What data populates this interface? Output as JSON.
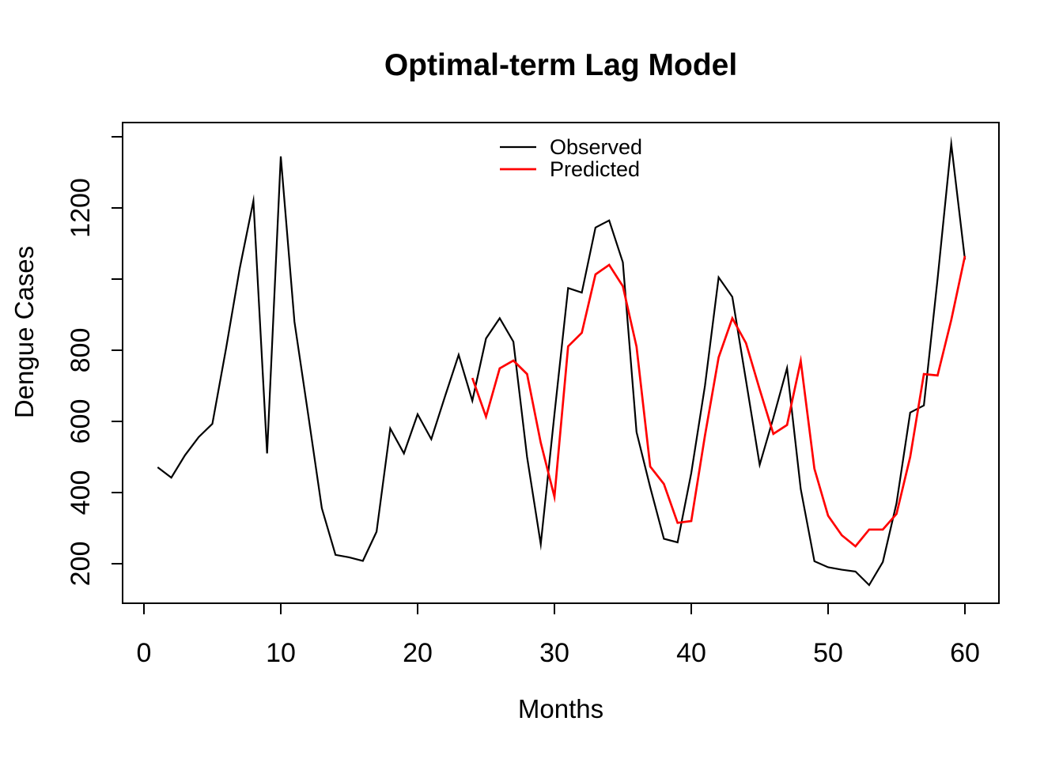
{
  "title": "Optimal-term Lag Model",
  "legend": {
    "items": [
      {
        "label": "Observed",
        "color": "#000000"
      },
      {
        "label": "Predicted",
        "color": "#ff0000"
      }
    ]
  },
  "chart_data": {
    "type": "line",
    "title": "Optimal-term Lag Model",
    "xlabel": "Months",
    "ylabel": "Dengue Cases",
    "xlim": [
      -1.6,
      62.5
    ],
    "ylim": [
      140,
      1440
    ],
    "grid": false,
    "legend_position": "top-center-inside",
    "x_ticks": [
      0,
      10,
      20,
      30,
      40,
      50,
      60
    ],
    "y_ticks": [
      {
        "value": 200,
        "label": "200"
      },
      {
        "value": 400,
        "label": "400"
      },
      {
        "value": 600,
        "label": "600"
      },
      {
        "value": 800,
        "label": "800"
      },
      {
        "value": 1000,
        "label": ""
      },
      {
        "value": 1200,
        "label": "1200"
      },
      {
        "value": 1400,
        "label": ""
      }
    ],
    "series": [
      {
        "name": "Observed",
        "color": "#000000",
        "stroke_width": 2.2,
        "x_start": 1,
        "x_step": 1,
        "values": [
          471,
          442,
          505,
          556,
          593,
          805,
          1030,
          1220,
          510,
          1345,
          880,
          620,
          356,
          225,
          218,
          208,
          290,
          580,
          510,
          620,
          550,
          670,
          787,
          658,
          833,
          890,
          824,
          500,
          255,
          620,
          975,
          962,
          1145,
          1165,
          1047,
          570,
          415,
          270,
          260,
          455,
          700,
          1005,
          950,
          715,
          478,
          610,
          750,
          410,
          207,
          190,
          183,
          178,
          140,
          205,
          370,
          625,
          645,
          1000,
          1380,
          1055
        ]
      },
      {
        "name": "Predicted",
        "color": "#ff0000",
        "stroke_width": 2.7,
        "x_start": 24,
        "x_step": 1,
        "values": [
          722,
          613,
          749,
          771,
          733,
          540,
          388,
          811,
          849,
          1013,
          1040,
          980,
          810,
          473,
          424,
          315,
          320,
          560,
          780,
          890,
          820,
          690,
          565,
          590,
          770,
          467,
          335,
          280,
          249,
          296,
          296,
          340,
          500,
          733,
          729,
          885,
          1065
        ]
      }
    ]
  }
}
